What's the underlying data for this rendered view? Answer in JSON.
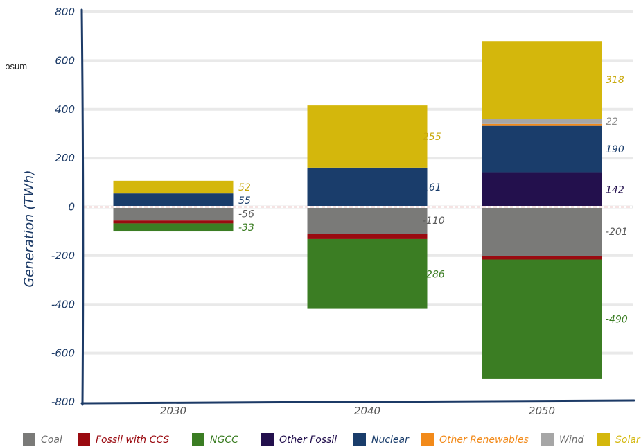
{
  "stray_text": "ɔsum",
  "chart_data": {
    "type": "bar",
    "stacked": true,
    "categories": [
      "2030",
      "2040",
      "2050"
    ],
    "ylabel": "Generation (TWh)",
    "xlabel": "",
    "ylim": [
      -800,
      800
    ],
    "yticks": [
      800,
      600,
      400,
      200,
      0,
      -200,
      -400,
      -600,
      -800
    ],
    "grid": true,
    "zero_line": "dashed red",
    "legend_position": "bottom",
    "legend": [
      "Coal",
      "Fossil with CCS",
      "NGCC",
      "Other Fossil",
      "Nuclear",
      "Other Renewables",
      "Wind",
      "Solar"
    ],
    "colors": {
      "Coal": "#7a7a78",
      "Fossil with CCS": "#9a0a10",
      "NGCC": "#3b7d23",
      "Other Fossil": "#23104d",
      "Nuclear": "#1a3d6b",
      "Other Renewables": "#f28a1a",
      "Wind": "#a6a6a6",
      "Solar": "#d4b70c"
    },
    "stacks": [
      {
        "category": "2030",
        "positive": [
          {
            "series": "Nuclear",
            "value": 55
          },
          {
            "series": "Solar",
            "value": 52
          }
        ],
        "negative": [
          {
            "series": "Coal",
            "value": -56
          },
          {
            "series": "Fossil with CCS",
            "value": -12
          },
          {
            "series": "NGCC",
            "value": -33
          }
        ],
        "labels": [
          {
            "text": "52",
            "value": 52,
            "series": "Solar"
          },
          {
            "text": "55",
            "value": 55,
            "series": "Nuclear"
          },
          {
            "text": "-56",
            "value": -56,
            "series": "Coal"
          },
          {
            "text": "-33",
            "value": -33,
            "series": "NGCC"
          }
        ]
      },
      {
        "category": "2040",
        "positive": [
          {
            "series": "Nuclear",
            "value": 161
          },
          {
            "series": "Solar",
            "value": 255
          }
        ],
        "negative": [
          {
            "series": "Coal",
            "value": -110
          },
          {
            "series": "Fossil with CCS",
            "value": -22
          },
          {
            "series": "NGCC",
            "value": -286
          }
        ],
        "labels": [
          {
            "text": "255",
            "value": 255,
            "series": "Solar"
          },
          {
            "text": "161",
            "value": 161,
            "series": "Nuclear"
          },
          {
            "text": "-110",
            "value": -110,
            "series": "Coal"
          },
          {
            "text": "-286",
            "value": -286,
            "series": "NGCC"
          }
        ]
      },
      {
        "category": "2050",
        "positive": [
          {
            "series": "Other Fossil",
            "value": 142
          },
          {
            "series": "Nuclear",
            "value": 190
          },
          {
            "series": "Other Renewables",
            "value": 8
          },
          {
            "series": "Wind",
            "value": 22
          },
          {
            "series": "Solar",
            "value": 318
          }
        ],
        "negative": [
          {
            "series": "Coal",
            "value": -201
          },
          {
            "series": "Fossil with CCS",
            "value": -15
          },
          {
            "series": "NGCC",
            "value": -490
          }
        ],
        "labels": [
          {
            "text": "318",
            "value": 318,
            "series": "Solar"
          },
          {
            "text": "22",
            "value": 22,
            "series": "Wind"
          },
          {
            "text": "190",
            "value": 190,
            "series": "Nuclear"
          },
          {
            "text": "142",
            "value": 142,
            "series": "Other Fossil"
          },
          {
            "text": "-201",
            "value": -201,
            "series": "Coal"
          },
          {
            "text": "-490",
            "value": -490,
            "series": "NGCC"
          }
        ]
      }
    ]
  }
}
